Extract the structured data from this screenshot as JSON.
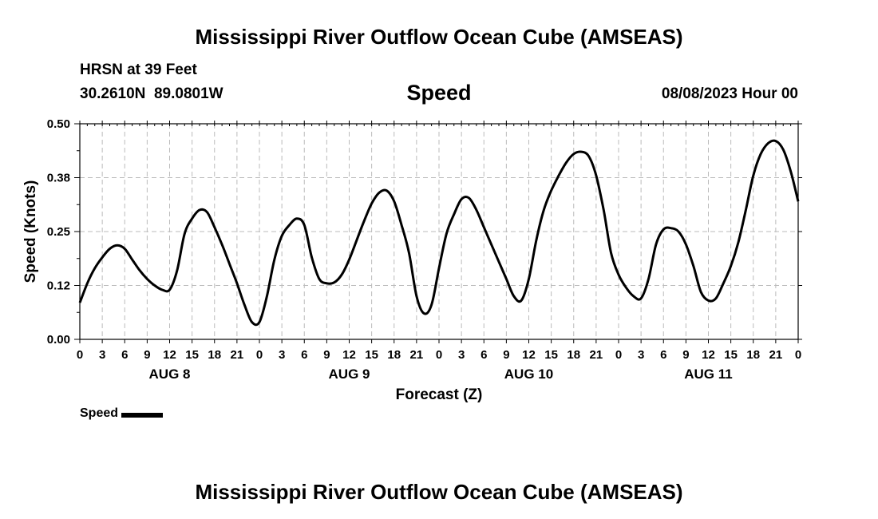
{
  "page_title": "Mississippi River Outflow Ocean Cube (AMSEAS)",
  "station": "HRSN at 39 Feet",
  "coordinates": "30.2610N  89.0801W",
  "variable": "Speed",
  "run_time": "08/08/2023 Hour 00",
  "footer_title": "Mississippi River Outflow Ocean Cube (AMSEAS)",
  "colors": {
    "line": "#000000",
    "grid": "#bbbbbb",
    "background": "#ffffff"
  },
  "chart_data": {
    "type": "line",
    "title": "Speed",
    "xlabel": "Forecast (Z)",
    "ylabel": "Speed (Knots)",
    "xlim": [
      0,
      96
    ],
    "ylim": [
      0,
      0.5
    ],
    "y_ticks": [
      "0.00",
      "0.12",
      "0.25",
      "0.38",
      "0.50"
    ],
    "y_tick_values": [
      0,
      0.125,
      0.25,
      0.375,
      0.5
    ],
    "x_tick_labels": [
      "0",
      "3",
      "6",
      "9",
      "12",
      "15",
      "18",
      "21",
      "0",
      "3",
      "6",
      "9",
      "12",
      "15",
      "18",
      "21",
      "0",
      "3",
      "6",
      "9",
      "12",
      "15",
      "18",
      "21",
      "0",
      "3",
      "6",
      "9",
      "12",
      "15",
      "18",
      "21",
      "0"
    ],
    "day_labels": [
      {
        "label": "AUG 8",
        "hour": 12
      },
      {
        "label": "AUG 9",
        "hour": 36
      },
      {
        "label": "AUG 10",
        "hour": 60
      },
      {
        "label": "AUG 11",
        "hour": 84
      }
    ],
    "grid": true,
    "legend": "bottom-left",
    "series": [
      {
        "name": "Speed",
        "x": [
          0,
          1,
          2,
          3,
          4,
          5,
          6,
          7,
          8,
          9,
          10,
          11,
          12,
          13,
          14,
          15,
          16,
          17,
          18,
          19,
          20,
          21,
          22,
          23,
          24,
          25,
          26,
          27,
          28,
          29,
          30,
          31,
          32,
          33,
          34,
          35,
          36,
          37,
          38,
          39,
          40,
          41,
          42,
          43,
          44,
          45,
          46,
          47,
          48,
          49,
          50,
          51,
          52,
          53,
          54,
          55,
          56,
          57,
          58,
          59,
          60,
          61,
          62,
          63,
          64,
          65,
          66,
          67,
          68,
          69,
          70,
          71,
          72,
          73,
          74,
          75,
          76,
          77,
          78,
          79,
          80,
          81,
          82,
          83,
          84,
          85,
          86,
          87,
          88,
          89,
          90,
          91,
          92,
          93,
          94,
          95,
          96
        ],
        "values": [
          0.085,
          0.13,
          0.165,
          0.19,
          0.21,
          0.218,
          0.21,
          0.185,
          0.16,
          0.14,
          0.125,
          0.115,
          0.115,
          0.16,
          0.245,
          0.28,
          0.3,
          0.295,
          0.26,
          0.22,
          0.175,
          0.13,
          0.08,
          0.04,
          0.04,
          0.1,
          0.185,
          0.24,
          0.265,
          0.28,
          0.265,
          0.19,
          0.14,
          0.13,
          0.132,
          0.15,
          0.185,
          0.23,
          0.275,
          0.315,
          0.34,
          0.345,
          0.32,
          0.265,
          0.2,
          0.1,
          0.06,
          0.08,
          0.165,
          0.245,
          0.29,
          0.325,
          0.328,
          0.3,
          0.26,
          0.22,
          0.18,
          0.14,
          0.1,
          0.09,
          0.14,
          0.23,
          0.3,
          0.345,
          0.38,
          0.41,
          0.43,
          0.435,
          0.425,
          0.38,
          0.3,
          0.2,
          0.15,
          0.12,
          0.1,
          0.095,
          0.14,
          0.22,
          0.255,
          0.258,
          0.25,
          0.22,
          0.17,
          0.11,
          0.09,
          0.095,
          0.13,
          0.17,
          0.225,
          0.3,
          0.38,
          0.43,
          0.455,
          0.46,
          0.44,
          0.39,
          0.32
        ]
      }
    ]
  }
}
